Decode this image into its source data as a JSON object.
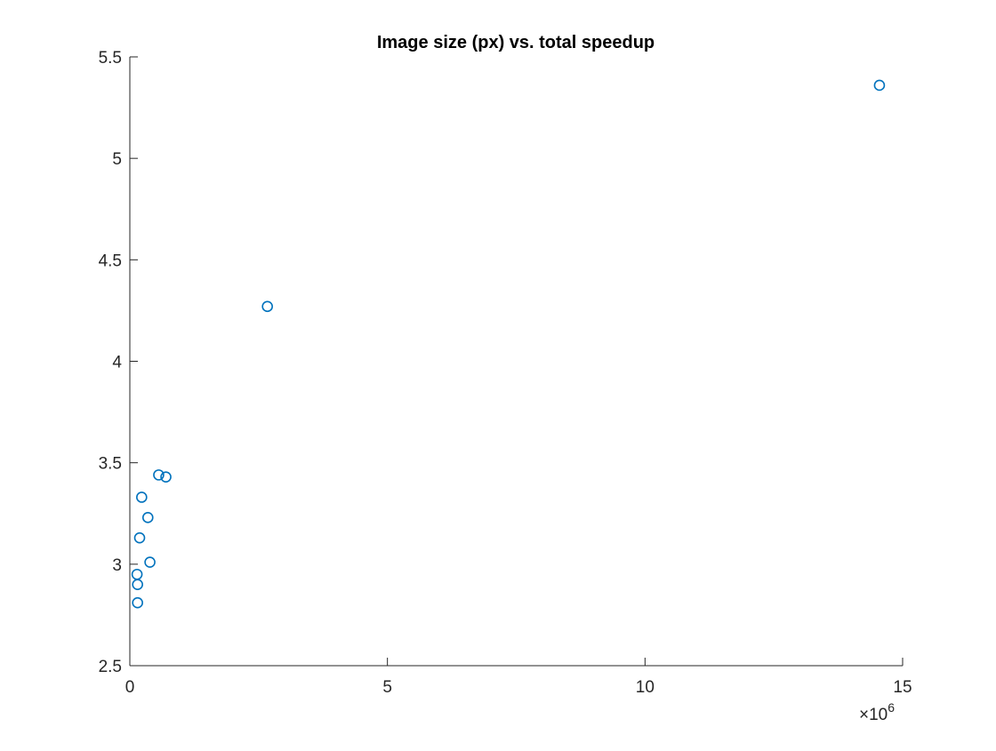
{
  "chart_data": {
    "type": "scatter",
    "title": "Image size (px) vs. total speedup",
    "xlabel": "",
    "ylabel": "",
    "xlim": [
      0,
      15000000
    ],
    "ylim": [
      2.5,
      5.5
    ],
    "x_ticks": [
      0,
      5000000,
      10000000,
      15000000
    ],
    "x_tick_labels": [
      "0",
      "5",
      "10",
      "15"
    ],
    "x_exponent_label": "×10",
    "x_exponent_power": "6",
    "y_ticks": [
      2.5,
      3,
      3.5,
      4,
      4.5,
      5,
      5.5
    ],
    "y_tick_labels": [
      "2.5",
      "3",
      "3.5",
      "4",
      "4.5",
      "5",
      "5.5"
    ],
    "grid": false,
    "legend": "none",
    "marker": "circle-open",
    "marker_color": "#0072BD",
    "series": [
      {
        "points": [
          {
            "x": 14550000,
            "y": 5.36
          },
          {
            "x": 2670000,
            "y": 4.27
          },
          {
            "x": 560000,
            "y": 3.44
          },
          {
            "x": 700000,
            "y": 3.43
          },
          {
            "x": 230000,
            "y": 3.33
          },
          {
            "x": 350000,
            "y": 3.23
          },
          {
            "x": 190000,
            "y": 3.13
          },
          {
            "x": 390000,
            "y": 3.01
          },
          {
            "x": 140000,
            "y": 2.95
          },
          {
            "x": 150000,
            "y": 2.9
          },
          {
            "x": 150000,
            "y": 2.81
          }
        ]
      }
    ]
  }
}
